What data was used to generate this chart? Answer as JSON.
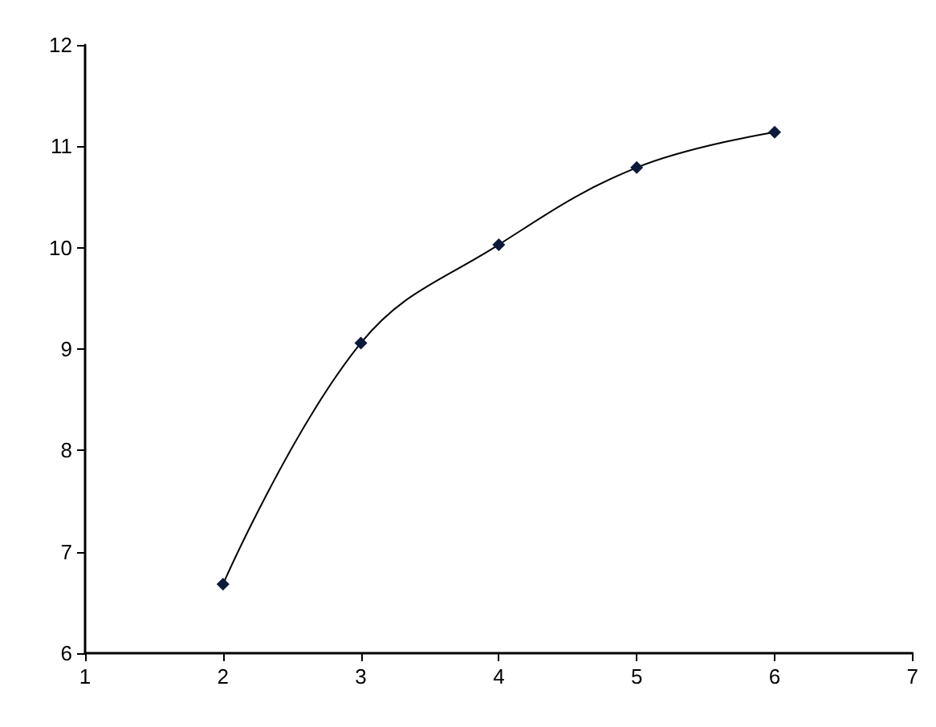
{
  "chart_data": {
    "type": "line",
    "x": [
      2,
      3,
      4,
      5,
      6
    ],
    "series": [
      {
        "color": "#000000",
        "values": [
          6.68,
          9.06,
          10.03,
          10.79,
          11.14
        ]
      }
    ],
    "xlim": [
      1,
      7
    ],
    "xticks": [
      1,
      2,
      3,
      4,
      5,
      6,
      7
    ],
    "ylim": [
      6,
      12
    ],
    "yticks": [
      6,
      7,
      8,
      9,
      10,
      11,
      12
    ],
    "marker": "diamond",
    "grid": false
  }
}
